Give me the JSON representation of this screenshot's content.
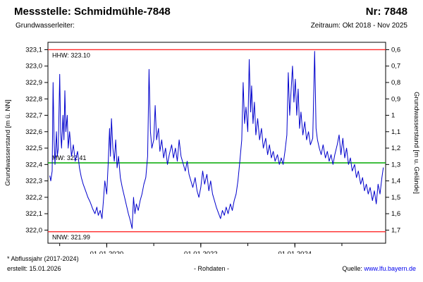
{
  "header": {
    "title": "Messstelle: Schmidmühle-7848",
    "number": "Nr: 7848",
    "aquifer_label": "Grundwasserleiter:",
    "period": "Zeitraum: Okt 2018 - Nov 2025"
  },
  "footer": {
    "note": "* Abflussjahr (2017-2024)",
    "created": "erstellt: 15.01.2026",
    "center": "- Rohdaten -",
    "source_label": "Quelle:",
    "source_link": "www.lfu.bayern.de"
  },
  "colors": {
    "series": "#0000cc",
    "hhw": "#ff2a2a",
    "nnw": "#ff2a2a",
    "mw": "#00a800",
    "link": "#0000ee"
  },
  "chart_data": {
    "type": "line",
    "title": "",
    "ylabel_left": "Grundwasserstand [m ü. NN]",
    "ylabel_right": "Grundwasserstand [m u. Gelände]",
    "x_range": [
      2018.75,
      2025.93
    ],
    "y_range": [
      321.92,
      323.145
    ],
    "grid": false,
    "y_left_ticks": [
      {
        "label": "323,1",
        "value": 323.1
      },
      {
        "label": "323,0",
        "value": 323.0
      },
      {
        "label": "322,9",
        "value": 322.9
      },
      {
        "label": "322,8",
        "value": 322.8
      },
      {
        "label": "322,7",
        "value": 322.7
      },
      {
        "label": "322,6",
        "value": 322.6
      },
      {
        "label": "322,5",
        "value": 322.5
      },
      {
        "label": "322,4",
        "value": 322.4
      },
      {
        "label": "322,3",
        "value": 322.3
      },
      {
        "label": "322,2",
        "value": 322.2
      },
      {
        "label": "322,1",
        "value": 322.1
      },
      {
        "label": "322,0",
        "value": 322.0
      }
    ],
    "y_right_ticks": [
      "0,6",
      "0,7",
      "0,8",
      "0,9",
      "1",
      "1,1",
      "1,2",
      "1,3",
      "1,4",
      "1,5",
      "1,6",
      "1,7"
    ],
    "x_major_ticks": [
      {
        "label": "01.01.2020",
        "t": 2020.0
      },
      {
        "label": "01.01.2022",
        "t": 2022.0
      },
      {
        "label": "01.01.2024",
        "t": 2024.0
      }
    ],
    "x_minor_ticks": [
      2019,
      2020,
      2021,
      2022,
      2023,
      2024,
      2025
    ],
    "reference_lines": [
      {
        "name": "HHW",
        "label": "HHW: 323.10",
        "value": 323.1,
        "color": "#ff2a2a",
        "label_side": "below"
      },
      {
        "name": "MW",
        "label": "MW: 322.41",
        "value": 322.41,
        "color": "#00a800",
        "label_side": "above"
      },
      {
        "name": "NNW",
        "label": "NNW: 321.99",
        "value": 321.99,
        "color": "#ff2a2a",
        "label_side": "below"
      }
    ],
    "series": [
      {
        "name": "Grundwasserstand Rohdaten",
        "color": "#0000cc",
        "points": [
          [
            2018.79,
            322.33
          ],
          [
            2018.81,
            322.3
          ],
          [
            2018.84,
            322.36
          ],
          [
            2018.86,
            322.9
          ],
          [
            2018.88,
            322.55
          ],
          [
            2018.9,
            322.4
          ],
          [
            2018.93,
            322.6
          ],
          [
            2018.95,
            322.45
          ],
          [
            2018.97,
            322.5
          ],
          [
            2019.0,
            322.95
          ],
          [
            2019.02,
            322.6
          ],
          [
            2019.04,
            322.5
          ],
          [
            2019.07,
            322.7
          ],
          [
            2019.09,
            322.55
          ],
          [
            2019.11,
            322.85
          ],
          [
            2019.13,
            322.6
          ],
          [
            2019.16,
            322.7
          ],
          [
            2019.18,
            322.5
          ],
          [
            2019.21,
            322.6
          ],
          [
            2019.25,
            322.45
          ],
          [
            2019.29,
            322.52
          ],
          [
            2019.33,
            322.42
          ],
          [
            2019.38,
            322.48
          ],
          [
            2019.42,
            322.38
          ],
          [
            2019.46,
            322.32
          ],
          [
            2019.5,
            322.28
          ],
          [
            2019.55,
            322.24
          ],
          [
            2019.6,
            322.2
          ],
          [
            2019.65,
            322.17
          ],
          [
            2019.7,
            322.13
          ],
          [
            2019.75,
            322.1
          ],
          [
            2019.79,
            322.14
          ],
          [
            2019.82,
            322.09
          ],
          [
            2019.86,
            322.12
          ],
          [
            2019.9,
            322.07
          ],
          [
            2019.93,
            322.18
          ],
          [
            2019.96,
            322.3
          ],
          [
            2020.0,
            322.22
          ],
          [
            2020.03,
            322.4
          ],
          [
            2020.06,
            322.62
          ],
          [
            2020.08,
            322.45
          ],
          [
            2020.1,
            322.68
          ],
          [
            2020.13,
            322.5
          ],
          [
            2020.16,
            322.42
          ],
          [
            2020.19,
            322.55
          ],
          [
            2020.22,
            322.38
          ],
          [
            2020.25,
            322.45
          ],
          [
            2020.29,
            322.32
          ],
          [
            2020.33,
            322.26
          ],
          [
            2020.38,
            322.2
          ],
          [
            2020.42,
            322.15
          ],
          [
            2020.46,
            322.1
          ],
          [
            2020.5,
            322.06
          ],
          [
            2020.54,
            322.01
          ],
          [
            2020.57,
            322.2
          ],
          [
            2020.6,
            322.1
          ],
          [
            2020.63,
            322.16
          ],
          [
            2020.67,
            322.12
          ],
          [
            2020.71,
            322.18
          ],
          [
            2020.75,
            322.22
          ],
          [
            2020.79,
            322.28
          ],
          [
            2020.83,
            322.32
          ],
          [
            2020.87,
            322.45
          ],
          [
            2020.9,
            322.98
          ],
          [
            2020.93,
            322.6
          ],
          [
            2020.96,
            322.5
          ],
          [
            2021.0,
            322.55
          ],
          [
            2021.03,
            322.76
          ],
          [
            2021.06,
            322.55
          ],
          [
            2021.1,
            322.62
          ],
          [
            2021.13,
            322.48
          ],
          [
            2021.17,
            322.55
          ],
          [
            2021.21,
            322.44
          ],
          [
            2021.25,
            322.5
          ],
          [
            2021.29,
            322.4
          ],
          [
            2021.33,
            322.46
          ],
          [
            2021.38,
            322.52
          ],
          [
            2021.42,
            322.44
          ],
          [
            2021.46,
            322.5
          ],
          [
            2021.5,
            322.42
          ],
          [
            2021.54,
            322.55
          ],
          [
            2021.58,
            322.45
          ],
          [
            2021.63,
            322.4
          ],
          [
            2021.67,
            322.36
          ],
          [
            2021.71,
            322.42
          ],
          [
            2021.75,
            322.34
          ],
          [
            2021.79,
            322.3
          ],
          [
            2021.83,
            322.26
          ],
          [
            2021.88,
            322.32
          ],
          [
            2021.92,
            322.24
          ],
          [
            2021.96,
            322.2
          ],
          [
            2022.0,
            322.26
          ],
          [
            2022.04,
            322.36
          ],
          [
            2022.08,
            322.28
          ],
          [
            2022.13,
            322.34
          ],
          [
            2022.17,
            322.24
          ],
          [
            2022.21,
            322.3
          ],
          [
            2022.25,
            322.22
          ],
          [
            2022.29,
            322.18
          ],
          [
            2022.33,
            322.14
          ],
          [
            2022.38,
            322.1
          ],
          [
            2022.42,
            322.07
          ],
          [
            2022.46,
            322.12
          ],
          [
            2022.5,
            322.09
          ],
          [
            2022.54,
            322.14
          ],
          [
            2022.58,
            322.1
          ],
          [
            2022.63,
            322.16
          ],
          [
            2022.67,
            322.12
          ],
          [
            2022.71,
            322.18
          ],
          [
            2022.75,
            322.22
          ],
          [
            2022.79,
            322.3
          ],
          [
            2022.83,
            322.42
          ],
          [
            2022.87,
            322.55
          ],
          [
            2022.9,
            322.9
          ],
          [
            2022.93,
            322.65
          ],
          [
            2022.96,
            322.75
          ],
          [
            2023.0,
            322.6
          ],
          [
            2023.03,
            323.04
          ],
          [
            2023.06,
            322.72
          ],
          [
            2023.08,
            322.88
          ],
          [
            2023.11,
            322.65
          ],
          [
            2023.14,
            322.78
          ],
          [
            2023.17,
            322.58
          ],
          [
            2023.21,
            322.68
          ],
          [
            2023.25,
            322.55
          ],
          [
            2023.29,
            322.62
          ],
          [
            2023.33,
            322.5
          ],
          [
            2023.38,
            322.56
          ],
          [
            2023.42,
            322.46
          ],
          [
            2023.46,
            322.52
          ],
          [
            2023.5,
            322.44
          ],
          [
            2023.54,
            322.48
          ],
          [
            2023.58,
            322.42
          ],
          [
            2023.63,
            322.46
          ],
          [
            2023.67,
            322.4
          ],
          [
            2023.71,
            322.44
          ],
          [
            2023.75,
            322.4
          ],
          [
            2023.79,
            322.48
          ],
          [
            2023.83,
            322.58
          ],
          [
            2023.86,
            322.96
          ],
          [
            2023.89,
            322.7
          ],
          [
            2023.92,
            322.85
          ],
          [
            2023.95,
            323.0
          ],
          [
            2023.98,
            322.78
          ],
          [
            2024.01,
            322.92
          ],
          [
            2024.04,
            322.7
          ],
          [
            2024.07,
            322.86
          ],
          [
            2024.1,
            322.62
          ],
          [
            2024.13,
            322.72
          ],
          [
            2024.17,
            322.58
          ],
          [
            2024.21,
            322.66
          ],
          [
            2024.25,
            322.55
          ],
          [
            2024.29,
            322.6
          ],
          [
            2024.33,
            322.52
          ],
          [
            2024.38,
            322.56
          ],
          [
            2024.42,
            323.09
          ],
          [
            2024.45,
            322.62
          ],
          [
            2024.48,
            322.55
          ],
          [
            2024.52,
            322.5
          ],
          [
            2024.56,
            322.46
          ],
          [
            2024.6,
            322.52
          ],
          [
            2024.65,
            322.44
          ],
          [
            2024.69,
            322.48
          ],
          [
            2024.73,
            322.42
          ],
          [
            2024.77,
            322.46
          ],
          [
            2024.81,
            322.4
          ],
          [
            2024.85,
            322.46
          ],
          [
            2024.9,
            322.52
          ],
          [
            2024.94,
            322.58
          ],
          [
            2024.98,
            322.46
          ],
          [
            2025.02,
            322.56
          ],
          [
            2025.06,
            322.44
          ],
          [
            2025.1,
            322.5
          ],
          [
            2025.14,
            322.4
          ],
          [
            2025.18,
            322.44
          ],
          [
            2025.22,
            322.36
          ],
          [
            2025.27,
            322.4
          ],
          [
            2025.31,
            322.32
          ],
          [
            2025.35,
            322.36
          ],
          [
            2025.4,
            322.28
          ],
          [
            2025.44,
            322.32
          ],
          [
            2025.48,
            322.24
          ],
          [
            2025.52,
            322.28
          ],
          [
            2025.56,
            322.22
          ],
          [
            2025.6,
            322.26
          ],
          [
            2025.65,
            322.18
          ],
          [
            2025.69,
            322.24
          ],
          [
            2025.73,
            322.16
          ],
          [
            2025.77,
            322.28
          ],
          [
            2025.81,
            322.22
          ],
          [
            2025.85,
            322.32
          ],
          [
            2025.88,
            322.38
          ]
        ]
      }
    ]
  }
}
